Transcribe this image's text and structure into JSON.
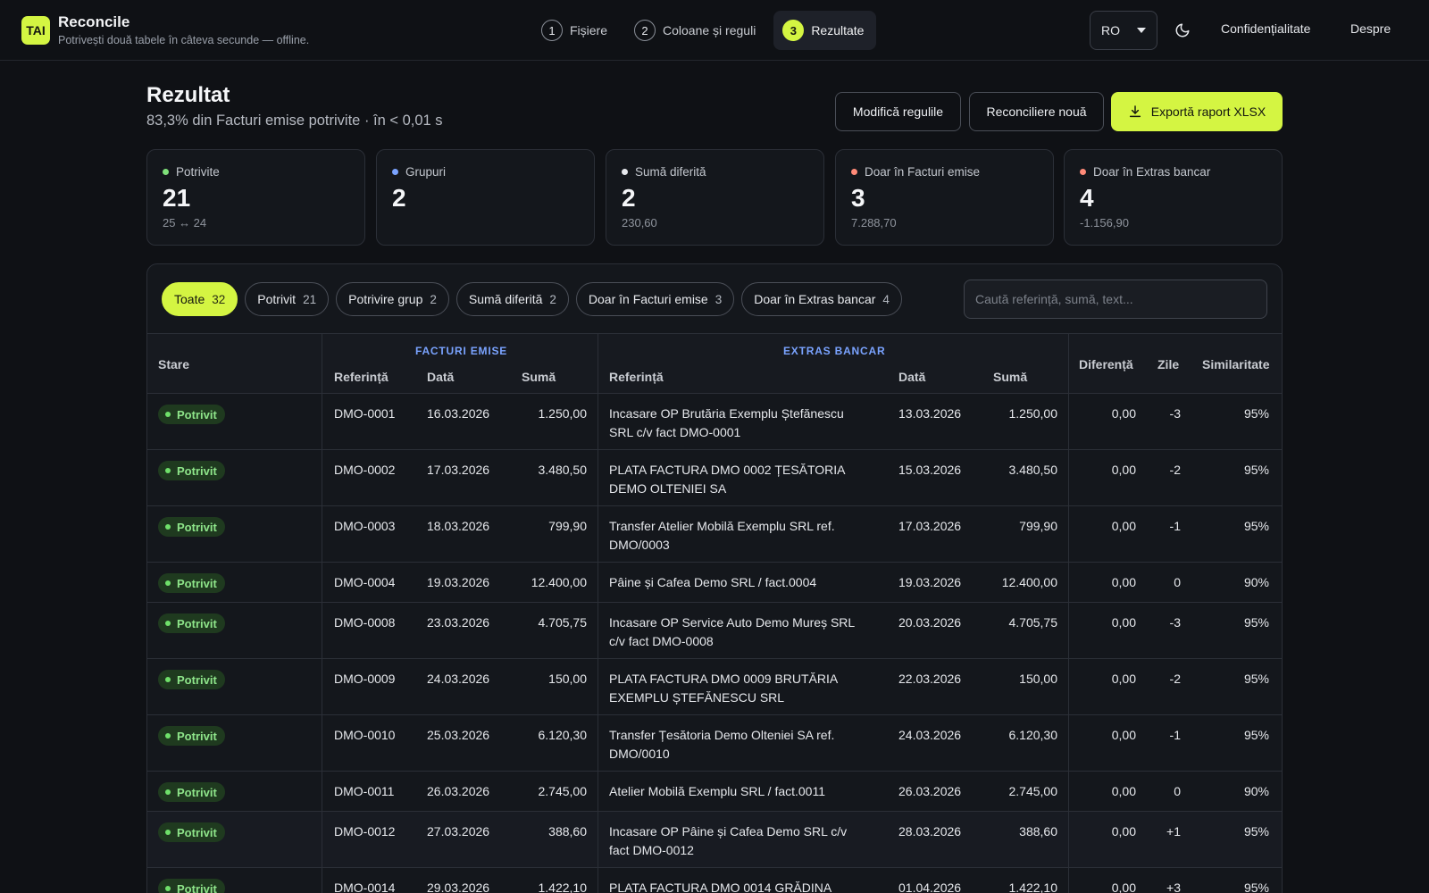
{
  "app": {
    "logo": "TAI",
    "title": "Reconcile",
    "subtitle": "Potrivești două tabele în câteva secunde — offline."
  },
  "steps": [
    {
      "num": "1",
      "label": "Fișiere"
    },
    {
      "num": "2",
      "label": "Coloane și reguli"
    },
    {
      "num": "3",
      "label": "Rezultate"
    }
  ],
  "header": {
    "lang": "RO",
    "privacy": "Confidențialitate",
    "about": "Despre"
  },
  "page": {
    "title": "Rezultat",
    "subtitle": "83,3% din Facturi emise potrivite · în < 0,01 s"
  },
  "actions": {
    "edit_rules": "Modifică regulile",
    "new_recon": "Reconciliere nouă",
    "export": "Exportă raport XLSX"
  },
  "stats": [
    {
      "label": "Potrivite",
      "value": "21",
      "sub": "25 ↔ 24",
      "color": "#7fe07a"
    },
    {
      "label": "Grupuri",
      "value": "2",
      "sub": "",
      "color": "#7aa3ff"
    },
    {
      "label": "Sumă diferită",
      "value": "2",
      "sub": "230,60",
      "color": "#e6e8ec"
    },
    {
      "label": "Doar în Facturi emise",
      "value": "3",
      "sub": "7.288,70",
      "color": "#ff8a78"
    },
    {
      "label": "Doar în Extras bancar",
      "value": "4",
      "sub": "-1.156,90",
      "color": "#ff8a78"
    }
  ],
  "filters": [
    {
      "label": "Toate",
      "count": "32"
    },
    {
      "label": "Potrivit",
      "count": "21"
    },
    {
      "label": "Potrivire grup",
      "count": "2"
    },
    {
      "label": "Sumă diferită",
      "count": "2"
    },
    {
      "label": "Doar în Facturi emise",
      "count": "3"
    },
    {
      "label": "Doar în Extras bancar",
      "count": "4"
    }
  ],
  "search": {
    "placeholder": "Caută referință, sumă, text..."
  },
  "table": {
    "groups": {
      "left": "FACTURI EMISE",
      "right": "EXTRAS BANCAR"
    },
    "headers": {
      "status": "Stare",
      "ref_a": "Referință",
      "date_a": "Dată",
      "sum_a": "Sumă",
      "ref_b": "Referință",
      "date_b": "Dată",
      "sum_b": "Sumă",
      "diff": "Diferență",
      "days": "Zile",
      "sim": "Similaritate"
    },
    "rows": [
      {
        "status": "Potrivit",
        "ref_a": "DMO-0001",
        "date_a": "16.03.2026",
        "sum_a": "1.250,00",
        "ref_b_1": "Incasare OP Brutăria Exemplu Ștefănescu",
        "ref_b_2": "SRL c/v fact DMO-0001",
        "date_b": "13.03.2026",
        "sum_b": "1.250,00",
        "diff": "0,00",
        "days": "-3",
        "sim": "95%"
      },
      {
        "status": "Potrivit",
        "ref_a": "DMO-0002",
        "date_a": "17.03.2026",
        "sum_a": "3.480,50",
        "ref_b_1": "PLATA FACTURA DMO 0002 ȚESĂTORIA",
        "ref_b_2": "DEMO OLTENIEI SA",
        "date_b": "15.03.2026",
        "sum_b": "3.480,50",
        "diff": "0,00",
        "days": "-2",
        "sim": "95%"
      },
      {
        "status": "Potrivit",
        "ref_a": "DMO-0003",
        "date_a": "18.03.2026",
        "sum_a": "799,90",
        "ref_b_1": "Transfer Atelier Mobilă Exemplu SRL ref.",
        "ref_b_2": "DMO/0003",
        "date_b": "17.03.2026",
        "sum_b": "799,90",
        "diff": "0,00",
        "days": "-1",
        "sim": "95%"
      },
      {
        "status": "Potrivit",
        "ref_a": "DMO-0004",
        "date_a": "19.03.2026",
        "sum_a": "12.400,00",
        "ref_b_1": "Pâine și Cafea Demo SRL / fact.0004",
        "ref_b_2": "",
        "date_b": "19.03.2026",
        "sum_b": "12.400,00",
        "diff": "0,00",
        "days": "0",
        "sim": "90%"
      },
      {
        "status": "Potrivit",
        "ref_a": "DMO-0008",
        "date_a": "23.03.2026",
        "sum_a": "4.705,75",
        "ref_b_1": "Incasare OP Service Auto Demo Mureș SRL",
        "ref_b_2": "c/v fact DMO-0008",
        "date_b": "20.03.2026",
        "sum_b": "4.705,75",
        "diff": "0,00",
        "days": "-3",
        "sim": "95%"
      },
      {
        "status": "Potrivit",
        "ref_a": "DMO-0009",
        "date_a": "24.03.2026",
        "sum_a": "150,00",
        "ref_b_1": "PLATA FACTURA DMO 0009 BRUTĂRIA",
        "ref_b_2": "EXEMPLU ȘTEFĂNESCU SRL",
        "date_b": "22.03.2026",
        "sum_b": "150,00",
        "diff": "0,00",
        "days": "-2",
        "sim": "95%"
      },
      {
        "status": "Potrivit",
        "ref_a": "DMO-0010",
        "date_a": "25.03.2026",
        "sum_a": "6.120,30",
        "ref_b_1": "Transfer Țesătoria Demo Olteniei SA ref.",
        "ref_b_2": "DMO/0010",
        "date_b": "24.03.2026",
        "sum_b": "6.120,30",
        "diff": "0,00",
        "days": "-1",
        "sim": "95%"
      },
      {
        "status": "Potrivit",
        "ref_a": "DMO-0011",
        "date_a": "26.03.2026",
        "sum_a": "2.745,00",
        "ref_b_1": "Atelier Mobilă Exemplu SRL / fact.0011",
        "ref_b_2": "",
        "date_b": "26.03.2026",
        "sum_b": "2.745,00",
        "diff": "0,00",
        "days": "0",
        "sim": "90%"
      },
      {
        "status": "Potrivit",
        "ref_a": "DMO-0012",
        "date_a": "27.03.2026",
        "sum_a": "388,60",
        "ref_b_1": "Incasare OP Pâine și Cafea Demo SRL c/v",
        "ref_b_2": "fact DMO-0012",
        "date_b": "28.03.2026",
        "sum_b": "388,60",
        "diff": "0,00",
        "days": "+1",
        "sim": "95%"
      },
      {
        "status": "Potrivit",
        "ref_a": "DMO-0014",
        "date_a": "29.03.2026",
        "sum_a": "1.422,10",
        "ref_b_1": "PLATA FACTURA DMO 0014 GRĂDINA",
        "ref_b_2": "",
        "date_b": "01.04.2026",
        "sum_b": "1.422,10",
        "diff": "0,00",
        "days": "+3",
        "sim": "95%"
      }
    ]
  }
}
